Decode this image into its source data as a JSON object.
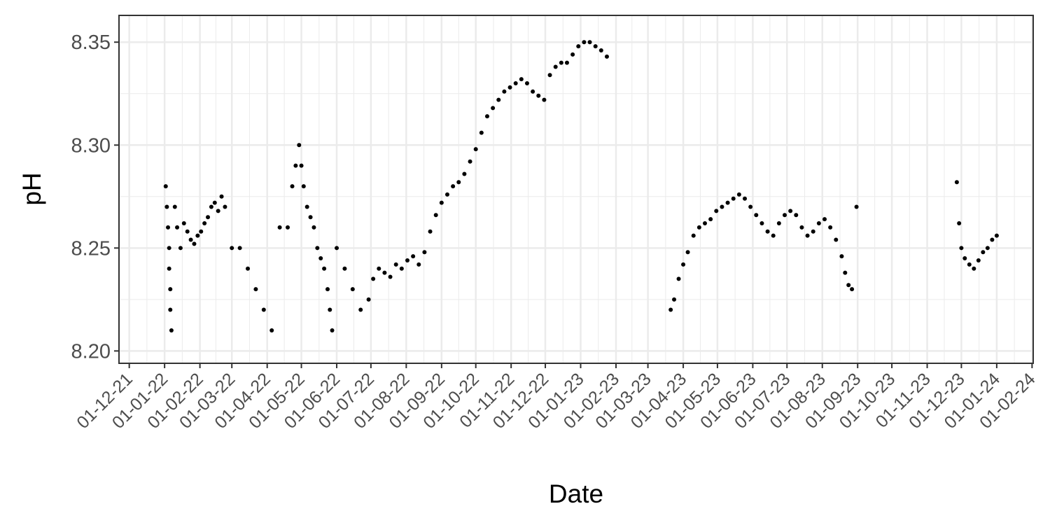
{
  "chart_data": {
    "type": "scatter",
    "title": "",
    "xlabel": "Date",
    "ylabel": "pH",
    "xlim": [
      "2021-11-22",
      "2024-02-02"
    ],
    "ylim": [
      8.194,
      8.363
    ],
    "y_ticks": [
      8.2,
      8.25,
      8.3,
      8.35
    ],
    "y_tick_labels": [
      "8.20",
      "8.25",
      "8.30",
      "8.35"
    ],
    "x_ticks": [
      "2021-12-01",
      "2022-01-01",
      "2022-02-01",
      "2022-03-01",
      "2022-04-01",
      "2022-05-01",
      "2022-06-01",
      "2022-07-01",
      "2022-08-01",
      "2022-09-01",
      "2022-10-01",
      "2022-11-01",
      "2022-12-01",
      "2023-01-01",
      "2023-02-01",
      "2023-03-01",
      "2023-04-01",
      "2023-05-01",
      "2023-06-01",
      "2023-07-01",
      "2023-08-01",
      "2023-09-01",
      "2023-10-01",
      "2023-11-01",
      "2023-12-01",
      "2024-01-01",
      "2024-02-01"
    ],
    "x_tick_labels": [
      "01-12-21",
      "01-01-22",
      "01-02-22",
      "01-03-22",
      "01-04-22",
      "01-05-22",
      "01-06-22",
      "01-07-22",
      "01-08-22",
      "01-09-22",
      "01-10-22",
      "01-11-22",
      "01-12-22",
      "01-01-23",
      "01-02-23",
      "01-03-23",
      "01-04-23",
      "01-05-23",
      "01-06-23",
      "01-07-23",
      "01-08-23",
      "01-09-23",
      "01-10-23",
      "01-11-23",
      "01-12-23",
      "01-01-24",
      "01-02-24"
    ],
    "grid": true,
    "point_color": "#000000",
    "series": [
      {
        "points": [
          [
            "2022-01-02",
            8.28
          ],
          [
            "2022-01-03",
            8.27
          ],
          [
            "2022-01-04",
            8.26
          ],
          [
            "2022-01-05",
            8.25
          ],
          [
            "2022-01-05",
            8.24
          ],
          [
            "2022-01-06",
            8.23
          ],
          [
            "2022-01-06",
            8.22
          ],
          [
            "2022-01-07",
            8.21
          ],
          [
            "2022-01-10",
            8.27
          ],
          [
            "2022-01-12",
            8.26
          ],
          [
            "2022-01-15",
            8.25
          ],
          [
            "2022-01-18",
            8.262
          ],
          [
            "2022-01-21",
            8.258
          ],
          [
            "2022-01-24",
            8.254
          ],
          [
            "2022-01-27",
            8.252
          ],
          [
            "2022-01-30",
            8.256
          ],
          [
            "2022-02-02",
            8.258
          ],
          [
            "2022-02-05",
            8.262
          ],
          [
            "2022-02-08",
            8.265
          ],
          [
            "2022-02-11",
            8.27
          ],
          [
            "2022-02-14",
            8.272
          ],
          [
            "2022-02-17",
            8.268
          ],
          [
            "2022-02-20",
            8.275
          ],
          [
            "2022-02-23",
            8.27
          ],
          [
            "2022-03-01",
            8.25
          ],
          [
            "2022-03-08",
            8.25
          ],
          [
            "2022-03-15",
            8.24
          ],
          [
            "2022-03-22",
            8.23
          ],
          [
            "2022-03-29",
            8.22
          ],
          [
            "2022-04-05",
            8.21
          ],
          [
            "2022-04-12",
            8.26
          ],
          [
            "2022-04-19",
            8.26
          ],
          [
            "2022-04-23",
            8.28
          ],
          [
            "2022-04-26",
            8.29
          ],
          [
            "2022-04-29",
            8.3
          ],
          [
            "2022-05-01",
            8.29
          ],
          [
            "2022-05-03",
            8.28
          ],
          [
            "2022-05-06",
            8.27
          ],
          [
            "2022-05-09",
            8.265
          ],
          [
            "2022-05-12",
            8.26
          ],
          [
            "2022-05-15",
            8.25
          ],
          [
            "2022-05-18",
            8.245
          ],
          [
            "2022-05-21",
            8.24
          ],
          [
            "2022-05-24",
            8.23
          ],
          [
            "2022-05-26",
            8.22
          ],
          [
            "2022-05-28",
            8.21
          ],
          [
            "2022-06-01",
            8.25
          ],
          [
            "2022-06-08",
            8.24
          ],
          [
            "2022-06-15",
            8.23
          ],
          [
            "2022-06-22",
            8.22
          ],
          [
            "2022-06-29",
            8.225
          ],
          [
            "2022-07-03",
            8.235
          ],
          [
            "2022-07-08",
            8.24
          ],
          [
            "2022-07-13",
            8.238
          ],
          [
            "2022-07-18",
            8.236
          ],
          [
            "2022-07-23",
            8.242
          ],
          [
            "2022-07-28",
            8.24
          ],
          [
            "2022-08-02",
            8.244
          ],
          [
            "2022-08-07",
            8.246
          ],
          [
            "2022-08-12",
            8.242
          ],
          [
            "2022-08-17",
            8.248
          ],
          [
            "2022-08-22",
            8.258
          ],
          [
            "2022-08-27",
            8.266
          ],
          [
            "2022-09-01",
            8.272
          ],
          [
            "2022-09-06",
            8.276
          ],
          [
            "2022-09-11",
            8.28
          ],
          [
            "2022-09-16",
            8.282
          ],
          [
            "2022-09-21",
            8.286
          ],
          [
            "2022-09-26",
            8.292
          ],
          [
            "2022-10-01",
            8.298
          ],
          [
            "2022-10-06",
            8.306
          ],
          [
            "2022-10-11",
            8.314
          ],
          [
            "2022-10-16",
            8.318
          ],
          [
            "2022-10-21",
            8.322
          ],
          [
            "2022-10-26",
            8.326
          ],
          [
            "2022-10-31",
            8.328
          ],
          [
            "2022-11-05",
            8.33
          ],
          [
            "2022-11-10",
            8.332
          ],
          [
            "2022-11-15",
            8.33
          ],
          [
            "2022-11-20",
            8.326
          ],
          [
            "2022-11-25",
            8.324
          ],
          [
            "2022-11-30",
            8.322
          ],
          [
            "2022-12-05",
            8.334
          ],
          [
            "2022-12-10",
            8.338
          ],
          [
            "2022-12-15",
            8.34
          ],
          [
            "2022-12-20",
            8.34
          ],
          [
            "2022-12-25",
            8.344
          ],
          [
            "2022-12-30",
            8.348
          ],
          [
            "2023-01-04",
            8.35
          ],
          [
            "2023-01-09",
            8.35
          ],
          [
            "2023-01-14",
            8.348
          ],
          [
            "2023-01-19",
            8.346
          ],
          [
            "2023-01-24",
            8.343
          ],
          [
            "2023-03-21",
            8.22
          ],
          [
            "2023-03-24",
            8.225
          ],
          [
            "2023-03-28",
            8.235
          ],
          [
            "2023-04-01",
            8.242
          ],
          [
            "2023-04-05",
            8.248
          ],
          [
            "2023-04-10",
            8.256
          ],
          [
            "2023-04-15",
            8.26
          ],
          [
            "2023-04-20",
            8.262
          ],
          [
            "2023-04-25",
            8.264
          ],
          [
            "2023-04-30",
            8.268
          ],
          [
            "2023-05-05",
            8.27
          ],
          [
            "2023-05-10",
            8.272
          ],
          [
            "2023-05-15",
            8.274
          ],
          [
            "2023-05-20",
            8.276
          ],
          [
            "2023-05-25",
            8.274
          ],
          [
            "2023-05-30",
            8.27
          ],
          [
            "2023-06-04",
            8.266
          ],
          [
            "2023-06-09",
            8.262
          ],
          [
            "2023-06-14",
            8.258
          ],
          [
            "2023-06-19",
            8.256
          ],
          [
            "2023-06-24",
            8.262
          ],
          [
            "2023-06-29",
            8.266
          ],
          [
            "2023-07-04",
            8.268
          ],
          [
            "2023-07-09",
            8.266
          ],
          [
            "2023-07-14",
            8.26
          ],
          [
            "2023-07-19",
            8.256
          ],
          [
            "2023-07-24",
            8.258
          ],
          [
            "2023-07-29",
            8.262
          ],
          [
            "2023-08-03",
            8.264
          ],
          [
            "2023-08-08",
            8.26
          ],
          [
            "2023-08-13",
            8.254
          ],
          [
            "2023-08-18",
            8.246
          ],
          [
            "2023-08-21",
            8.238
          ],
          [
            "2023-08-24",
            8.232
          ],
          [
            "2023-08-27",
            8.23
          ],
          [
            "2023-08-31",
            8.27
          ],
          [
            "2023-11-27",
            8.282
          ],
          [
            "2023-11-29",
            8.262
          ],
          [
            "2023-12-01",
            8.25
          ],
          [
            "2023-12-04",
            8.245
          ],
          [
            "2023-12-08",
            8.242
          ],
          [
            "2023-12-12",
            8.24
          ],
          [
            "2023-12-16",
            8.244
          ],
          [
            "2023-12-20",
            8.248
          ],
          [
            "2023-12-24",
            8.25
          ],
          [
            "2023-12-28",
            8.254
          ],
          [
            "2024-01-01",
            8.256
          ]
        ]
      }
    ]
  }
}
